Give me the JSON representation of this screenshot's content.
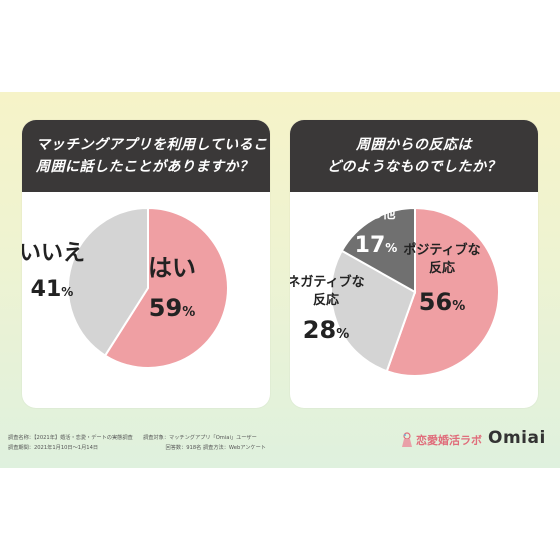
{
  "chart_data": [
    {
      "type": "pie",
      "title_lines": [
        "マッチングアプリを利用していることを",
        "周囲に話したことがありますか？"
      ],
      "slices": [
        {
          "label_lines": [
            "はい"
          ],
          "value": 59,
          "value_text": "59",
          "unit": "%",
          "color": "#ef9fa3"
        },
        {
          "label_lines": [
            "いいえ"
          ],
          "value": 41,
          "value_text": "41",
          "unit": "%",
          "color": "#d4d4d4"
        }
      ]
    },
    {
      "type": "pie",
      "title_lines": [
        "周囲からの反応は",
        "どのようなものでしたか？"
      ],
      "slices": [
        {
          "label_lines": [
            "ポジティブな",
            "反応"
          ],
          "value": 56,
          "value_text": "56",
          "unit": "%",
          "color": "#ef9fa3"
        },
        {
          "label_lines": [
            "ネガティブな",
            "反応"
          ],
          "value": 28,
          "value_text": "28",
          "unit": "%",
          "color": "#d4d4d4"
        },
        {
          "label_lines": [
            "その他"
          ],
          "value": 17,
          "value_text": "17",
          "unit": "%",
          "color": "#707070"
        }
      ]
    }
  ],
  "footer": {
    "lines": [
      "調査名称：【2021年】婚活・恋愛・デートの実態調査　　調査対象：マッチングアプリ「Omiai」ユーザー",
      "調査期間：2021年1月10日〜1月14日　　　　　　　　　　　　　回答数：918名 調査方法：Webアンケート"
    ]
  },
  "brand": {
    "lab_name": "恋愛婚活ラボ",
    "app_name": "Omiai",
    "icon": "flask-icon"
  }
}
